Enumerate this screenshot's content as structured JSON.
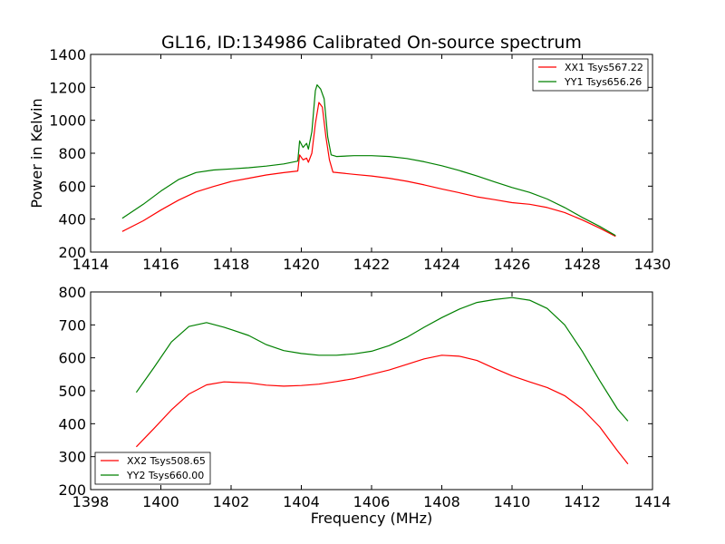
{
  "chart_data": [
    {
      "type": "line",
      "title": "GL16, ID:134986 Calibrated On-source spectrum",
      "xlabel": "",
      "ylabel": "Power in Kelvin",
      "xlim": [
        1414,
        1430
      ],
      "ylim": [
        200,
        1400
      ],
      "xticks": [
        "1414",
        "1416",
        "1418",
        "1420",
        "1422",
        "1424",
        "1426",
        "1428",
        "1430"
      ],
      "yticks": [
        "200",
        "400",
        "600",
        "800",
        "1000",
        "1200",
        "1400"
      ],
      "legend_position": "top-right",
      "grid": false,
      "series": [
        {
          "name": "XX1 Tsys567.22",
          "color": "#ff0000",
          "points": [
            [
              1414.9,
              325
            ],
            [
              1415.5,
              390
            ],
            [
              1416.0,
              455
            ],
            [
              1416.5,
              515
            ],
            [
              1417.0,
              565
            ],
            [
              1417.5,
              598
            ],
            [
              1418.0,
              628
            ],
            [
              1418.5,
              648
            ],
            [
              1419.0,
              668
            ],
            [
              1419.5,
              682
            ],
            [
              1419.9,
              692
            ],
            [
              1419.95,
              790
            ],
            [
              1420.05,
              760
            ],
            [
              1420.15,
              770
            ],
            [
              1420.2,
              745
            ],
            [
              1420.3,
              800
            ],
            [
              1420.4,
              980
            ],
            [
              1420.5,
              1108
            ],
            [
              1420.6,
              1080
            ],
            [
              1420.7,
              900
            ],
            [
              1420.8,
              760
            ],
            [
              1420.9,
              685
            ],
            [
              1421.5,
              672
            ],
            [
              1422.0,
              662
            ],
            [
              1422.5,
              648
            ],
            [
              1423.0,
              630
            ],
            [
              1423.5,
              608
            ],
            [
              1424.0,
              583
            ],
            [
              1424.5,
              560
            ],
            [
              1425.0,
              535
            ],
            [
              1425.5,
              518
            ],
            [
              1426.0,
              500
            ],
            [
              1426.5,
              490
            ],
            [
              1427.0,
              470
            ],
            [
              1427.5,
              440
            ],
            [
              1428.0,
              395
            ],
            [
              1428.5,
              345
            ],
            [
              1428.95,
              295
            ]
          ]
        },
        {
          "name": "YY1 Tsys656.26",
          "color": "#008000",
          "points": [
            [
              1414.9,
              405
            ],
            [
              1415.5,
              490
            ],
            [
              1416.0,
              570
            ],
            [
              1416.5,
              640
            ],
            [
              1417.0,
              683
            ],
            [
              1417.5,
              698
            ],
            [
              1418.0,
              705
            ],
            [
              1418.5,
              712
            ],
            [
              1419.0,
              722
            ],
            [
              1419.5,
              735
            ],
            [
              1419.9,
              752
            ],
            [
              1419.95,
              875
            ],
            [
              1420.05,
              835
            ],
            [
              1420.15,
              860
            ],
            [
              1420.2,
              825
            ],
            [
              1420.3,
              930
            ],
            [
              1420.4,
              1180
            ],
            [
              1420.45,
              1215
            ],
            [
              1420.55,
              1190
            ],
            [
              1420.65,
              1130
            ],
            [
              1420.75,
              900
            ],
            [
              1420.85,
              790
            ],
            [
              1421.0,
              780
            ],
            [
              1421.5,
              785
            ],
            [
              1422.0,
              785
            ],
            [
              1422.5,
              780
            ],
            [
              1423.0,
              768
            ],
            [
              1423.5,
              748
            ],
            [
              1424.0,
              724
            ],
            [
              1424.5,
              695
            ],
            [
              1425.0,
              662
            ],
            [
              1425.5,
              626
            ],
            [
              1426.0,
              592
            ],
            [
              1426.5,
              562
            ],
            [
              1427.0,
              522
            ],
            [
              1427.5,
              470
            ],
            [
              1428.0,
              410
            ],
            [
              1428.5,
              355
            ],
            [
              1428.95,
              300
            ]
          ]
        }
      ]
    },
    {
      "type": "line",
      "title": "",
      "xlabel": "Frequency (MHz)",
      "ylabel": "",
      "xlim": [
        1398,
        1414
      ],
      "ylim": [
        200,
        800
      ],
      "xticks": [
        "1398",
        "1400",
        "1402",
        "1404",
        "1406",
        "1408",
        "1410",
        "1412",
        "1414"
      ],
      "yticks": [
        "200",
        "300",
        "400",
        "500",
        "600",
        "700",
        "800"
      ],
      "legend_position": "bottom-left",
      "grid": false,
      "series": [
        {
          "name": "XX2 Tsys508.65",
          "color": "#ff0000",
          "points": [
            [
              1399.3,
              330
            ],
            [
              1399.8,
              385
            ],
            [
              1400.3,
              442
            ],
            [
              1400.8,
              490
            ],
            [
              1401.3,
              518
            ],
            [
              1401.8,
              527
            ],
            [
              1402.5,
              524
            ],
            [
              1403.0,
              517
            ],
            [
              1403.5,
              514
            ],
            [
              1404.0,
              516
            ],
            [
              1404.5,
              520
            ],
            [
              1405.0,
              528
            ],
            [
              1405.5,
              537
            ],
            [
              1406.0,
              550
            ],
            [
              1406.5,
              563
            ],
            [
              1407.0,
              580
            ],
            [
              1407.5,
              597
            ],
            [
              1408.0,
              608
            ],
            [
              1408.5,
              605
            ],
            [
              1409.0,
              592
            ],
            [
              1409.5,
              568
            ],
            [
              1410.0,
              545
            ],
            [
              1410.5,
              527
            ],
            [
              1411.0,
              510
            ],
            [
              1411.5,
              485
            ],
            [
              1412.0,
              445
            ],
            [
              1412.5,
              390
            ],
            [
              1413.0,
              318
            ],
            [
              1413.3,
              278
            ]
          ]
        },
        {
          "name": "YY2 Tsys660.00",
          "color": "#008000",
          "points": [
            [
              1399.3,
              495
            ],
            [
              1399.8,
              570
            ],
            [
              1400.3,
              648
            ],
            [
              1400.8,
              695
            ],
            [
              1401.3,
              707
            ],
            [
              1401.8,
              693
            ],
            [
              1402.5,
              668
            ],
            [
              1403.0,
              640
            ],
            [
              1403.5,
              622
            ],
            [
              1404.0,
              613
            ],
            [
              1404.5,
              608
            ],
            [
              1405.0,
              608
            ],
            [
              1405.5,
              612
            ],
            [
              1406.0,
              620
            ],
            [
              1406.5,
              637
            ],
            [
              1407.0,
              662
            ],
            [
              1407.5,
              693
            ],
            [
              1408.0,
              722
            ],
            [
              1408.5,
              748
            ],
            [
              1409.0,
              768
            ],
            [
              1409.5,
              777
            ],
            [
              1410.0,
              783
            ],
            [
              1410.5,
              775
            ],
            [
              1411.0,
              750
            ],
            [
              1411.5,
              700
            ],
            [
              1412.0,
              620
            ],
            [
              1412.5,
              530
            ],
            [
              1413.0,
              445
            ],
            [
              1413.3,
              408
            ]
          ]
        }
      ]
    }
  ]
}
